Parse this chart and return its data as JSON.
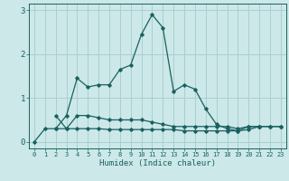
{
  "title": "",
  "xlabel": "Humidex (Indice chaleur)",
  "ylabel": "",
  "background_color": "#cce8e8",
  "grid_color": "#aacfcf",
  "line_color": "#1a6060",
  "series": [
    {
      "x": [
        0,
        1,
        2,
        3,
        4,
        5,
        6,
        7,
        8,
        9,
        10,
        11,
        12,
        13,
        14,
        15,
        16,
        17,
        18,
        19,
        20,
        21
      ],
      "y": [
        0.0,
        0.3,
        0.3,
        0.6,
        1.45,
        1.25,
        1.3,
        1.3,
        1.65,
        1.75,
        2.45,
        2.9,
        2.6,
        1.15,
        1.3,
        1.2,
        0.75,
        0.4,
        0.3,
        0.25,
        0.35,
        0.35
      ]
    },
    {
      "x": [
        2,
        3,
        4,
        5,
        6,
        7,
        8,
        9,
        10,
        11,
        12,
        13,
        14,
        15,
        16,
        17,
        18,
        19,
        20,
        21,
        22,
        23
      ],
      "y": [
        0.6,
        0.3,
        0.6,
        0.6,
        0.55,
        0.5,
        0.5,
        0.5,
        0.5,
        0.45,
        0.4,
        0.35,
        0.35,
        0.35,
        0.35,
        0.35,
        0.35,
        0.3,
        0.35,
        0.35,
        0.35,
        0.35
      ]
    },
    {
      "x": [
        2,
        3,
        4,
        5,
        6,
        7,
        8,
        9,
        10,
        11,
        12,
        13,
        14,
        15,
        16,
        17,
        18,
        19,
        20,
        21,
        22,
        23
      ],
      "y": [
        0.3,
        0.3,
        0.3,
        0.3,
        0.3,
        0.28,
        0.28,
        0.28,
        0.28,
        0.28,
        0.28,
        0.28,
        0.25,
        0.25,
        0.25,
        0.25,
        0.25,
        0.25,
        0.28,
        0.35,
        0.35,
        0.35
      ]
    }
  ],
  "ylim": [
    -0.15,
    3.15
  ],
  "yticks": [
    0,
    1,
    2,
    3
  ],
  "xlim": [
    -0.5,
    23.5
  ],
  "xticks": [
    0,
    1,
    2,
    3,
    4,
    5,
    6,
    7,
    8,
    9,
    10,
    11,
    12,
    13,
    14,
    15,
    16,
    17,
    18,
    19,
    20,
    21,
    22,
    23
  ]
}
